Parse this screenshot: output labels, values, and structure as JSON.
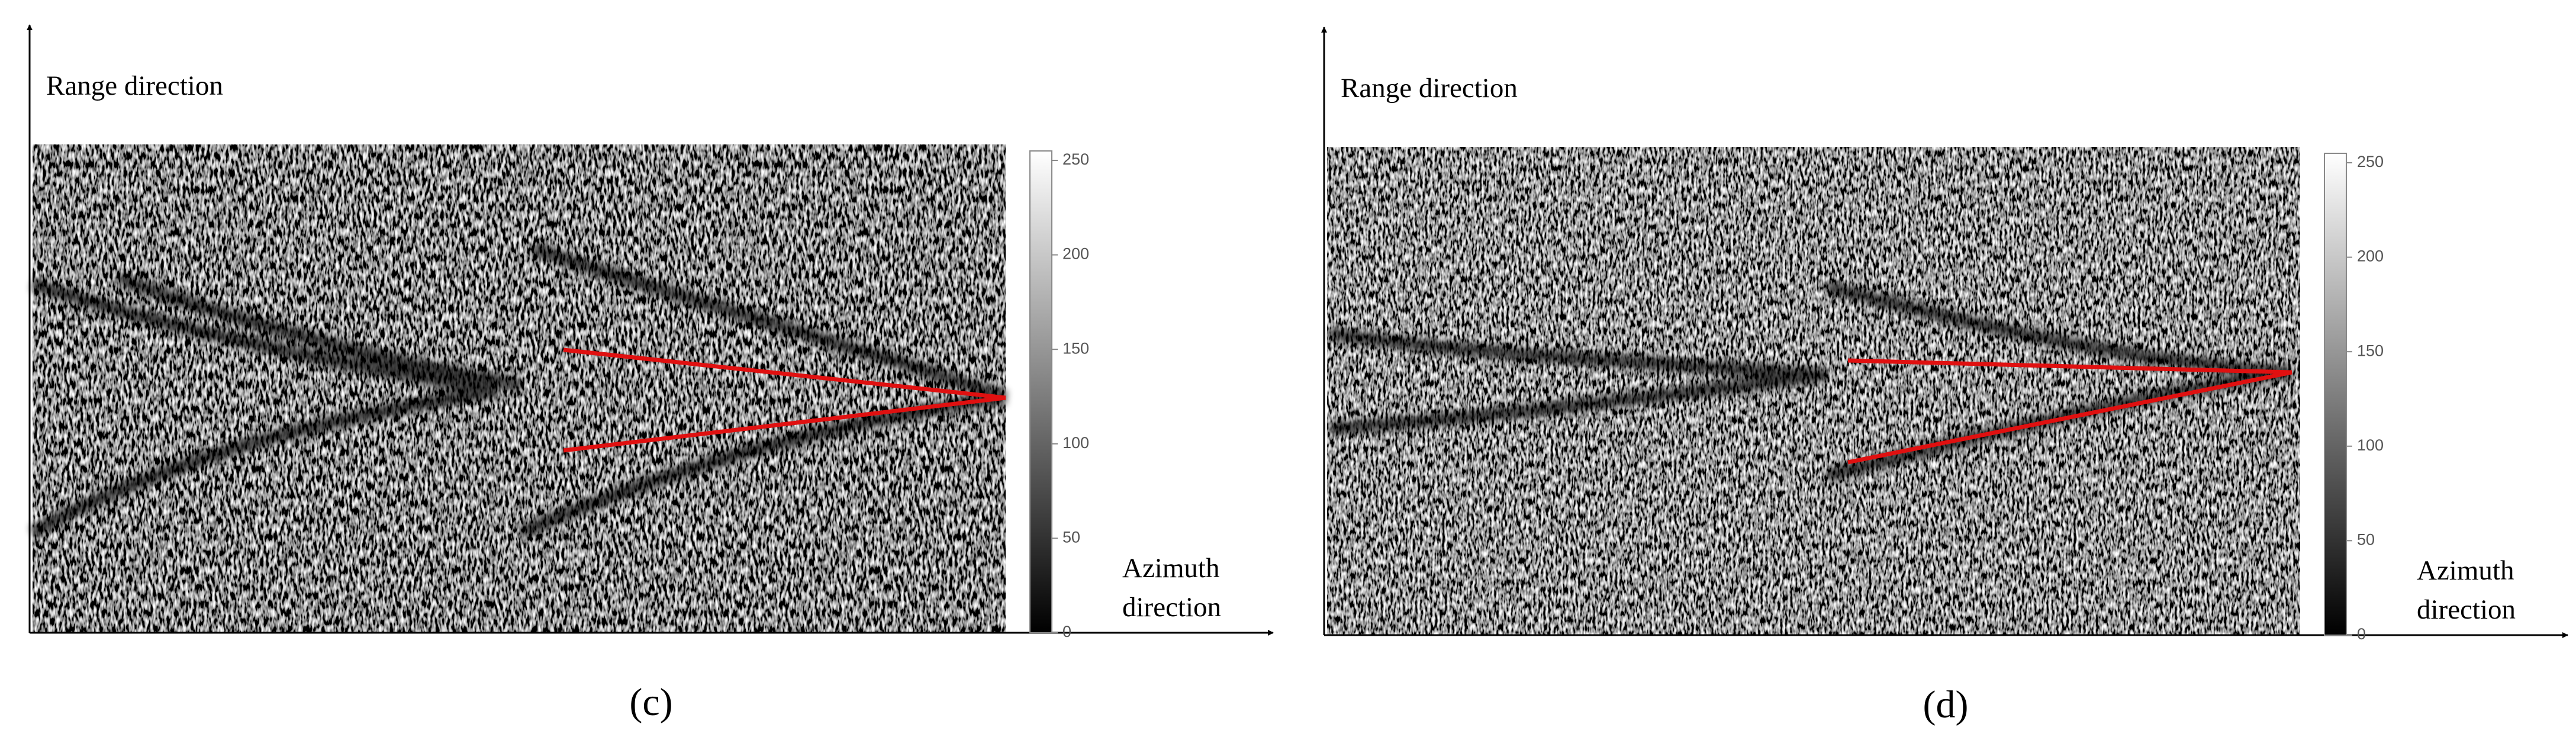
{
  "panels": [
    {
      "y_axis_label": "Range direction",
      "x_axis_label": [
        "Azimuth",
        "direction"
      ],
      "caption": "(c)",
      "colorbar": {
        "lim": [
          0,
          255
        ],
        "ticks": [
          0,
          50,
          100,
          150,
          200,
          250
        ]
      }
    },
    {
      "y_axis_label": "Range direction",
      "x_axis_label": [
        "Azimuth",
        "direction"
      ],
      "caption": "(d)",
      "colorbar": {
        "lim": [
          0,
          255
        ],
        "ticks": [
          0,
          50,
          100,
          150,
          200,
          250
        ]
      }
    }
  ]
}
